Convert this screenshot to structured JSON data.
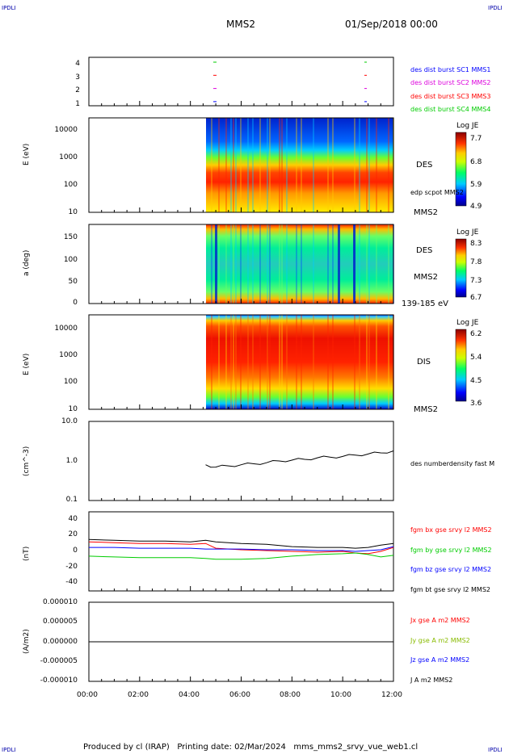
{
  "corners": {
    "tl": "IPDLI",
    "tr": "IPDLI",
    "bl": "IPDLI",
    "br": "IPDLI"
  },
  "header": {
    "spacecraft": "MMS2",
    "date": "01/Sep/2018 00:00"
  },
  "footer": {
    "text": "Produced by cl (IRAP)   Printing date: 02/Mar/2024   mms_mms2_srvy_vue_web1.cl"
  },
  "colors": {
    "blue": "#0000ff",
    "magenta": "#dd00dd",
    "red": "#ff0000",
    "green": "#00cc00",
    "black": "#000000"
  },
  "panels": {
    "p1": {
      "yticks": [
        "4",
        "3",
        "2",
        "1"
      ],
      "legend": [
        {
          "text": "des dist burst SC1 MMS1",
          "color": "#0000ff"
        },
        {
          "text": "des dist burst SC2 MMS2",
          "color": "#dd00dd"
        },
        {
          "text": "des dist burst SC3 MMS3",
          "color": "#ff0000"
        },
        {
          "text": "des dist burst SC4 MMS4",
          "color": "#00cc00"
        }
      ]
    },
    "p2": {
      "ylabel": "E (eV)",
      "yticks": [
        "10000",
        "1000",
        "100",
        "10"
      ],
      "name": "DES",
      "sub": "edp scpot MMS2",
      "sc": "MMS2",
      "cbar_title": "Log JE",
      "cbar_ticks": [
        "7.7",
        "6.8",
        "5.9",
        "4.9"
      ]
    },
    "p3": {
      "ylabel": "a (deg)",
      "yticks": [
        "150",
        "100",
        "50",
        "0"
      ],
      "name": "DES",
      "sc": "MMS2",
      "range": "139-185 eV",
      "cbar_title": "Log JE",
      "cbar_ticks": [
        "8.3",
        "7.8",
        "7.3",
        "6.7"
      ]
    },
    "p4": {
      "ylabel": "E (eV)",
      "yticks": [
        "10000",
        "1000",
        "100",
        "10"
      ],
      "name": "DIS",
      "sc": "MMS2",
      "cbar_title": "Log JE",
      "cbar_ticks": [
        "6.2",
        "5.4",
        "4.5",
        "3.6"
      ]
    },
    "p5": {
      "ylabel": "(cm^-3)",
      "yticks": [
        "10.0",
        "1.0",
        "0.1"
      ],
      "legend": "des numberdensity fast M"
    },
    "p6": {
      "ylabel": "(nT)",
      "yticks": [
        "40",
        "20",
        "0",
        "-20",
        "-40"
      ],
      "legend": [
        {
          "text": "fgm bx gse srvy l2 MMS2",
          "color": "#ff0000"
        },
        {
          "text": "fgm by gse srvy l2 MMS2",
          "color": "#00cc00"
        },
        {
          "text": "fgm bz gse srvy l2 MMS2",
          "color": "#0000ff"
        },
        {
          "text": "fgm bt gse srvy l2 MMS2",
          "color": "#000000"
        }
      ]
    },
    "p7": {
      "ylabel": "(A/m2)",
      "yticks": [
        "0.000010",
        "0.000005",
        "0.000000",
        "-0.000005",
        "-0.000010"
      ],
      "legend": [
        {
          "text": "Jx gse A m2 MMS2",
          "color": "#ff0000"
        },
        {
          "text": "Jy gse A m2 MMS2",
          "color": "#00cc00"
        },
        {
          "text": "Jz gse A m2 MMS2",
          "color": "#0000ff"
        },
        {
          "text": "J A m2 MMS2",
          "color": "#000000"
        }
      ]
    }
  },
  "xaxis": {
    "ticks": [
      "00:00",
      "02:00",
      "04:00",
      "06:00",
      "08:00",
      "10:00",
      "12:00"
    ]
  },
  "chart_data": {
    "type": "line",
    "title": "MMS2 01/Sep/2018 00:00",
    "x_ticks": [
      "00:00",
      "02:00",
      "04:00",
      "06:00",
      "08:00",
      "10:00",
      "12:00"
    ],
    "density": {
      "x": [
        4.6,
        5.0,
        5.5,
        6.0,
        6.5,
        7.0,
        7.5,
        8.0,
        8.5,
        9.0,
        9.5,
        10.0,
        10.5,
        11.0,
        11.5,
        12.0
      ],
      "y": [
        0.8,
        0.7,
        0.75,
        0.8,
        0.85,
        0.9,
        1.0,
        1.05,
        1.1,
        1.2,
        1.25,
        1.3,
        1.4,
        1.5,
        1.6,
        1.8
      ],
      "ylim": [
        0.1,
        10
      ]
    },
    "bfield": {
      "ylim": [
        -50,
        50
      ],
      "x": [
        0,
        1,
        2,
        3,
        4,
        4.6,
        5,
        6,
        7,
        8,
        9,
        10,
        10.5,
        11,
        11.5,
        12
      ],
      "series": [
        {
          "name": "fgm bx gse srvy l2 MMS2",
          "values": [
            12,
            11,
            10,
            10,
            9,
            10,
            4,
            2,
            1,
            0,
            -1,
            0,
            -2,
            -3,
            0,
            5
          ]
        },
        {
          "name": "fgm by gse srvy l2 MMS2",
          "values": [
            -6,
            -7,
            -8,
            -8,
            -8,
            -9,
            -10,
            -10,
            -9,
            -6,
            -4,
            -3,
            -2,
            -4,
            -7,
            -5
          ]
        },
        {
          "name": "fgm bz gse srvy l2 MMS2",
          "values": [
            5,
            5,
            4,
            4,
            4,
            3,
            3,
            3,
            2,
            2,
            1,
            1,
            0,
            1,
            2,
            6
          ]
        },
        {
          "name": "fgm bt gse srvy l2 MMS2",
          "values": [
            15,
            14,
            13,
            13,
            12,
            14,
            12,
            10,
            9,
            6,
            5,
            5,
            4,
            5,
            8,
            10
          ]
        }
      ]
    },
    "current": {
      "ylim": [
        -1e-05,
        1e-05
      ],
      "x": [
        0,
        6,
        12
      ],
      "values": [
        0,
        0,
        0
      ]
    }
  }
}
